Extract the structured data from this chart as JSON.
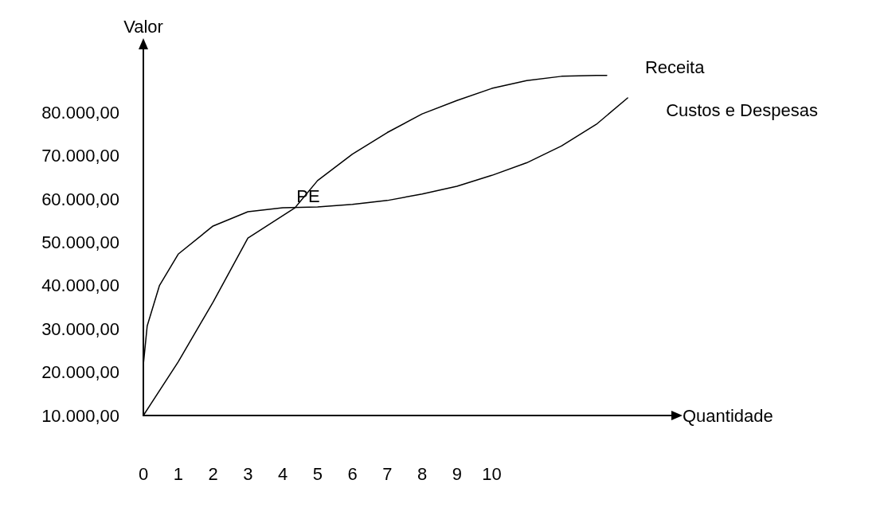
{
  "chart_data": {
    "type": "line",
    "xlabel": "Quantidade",
    "ylabel": "Valor",
    "xlim": [
      0,
      15.2
    ],
    "xticks": [
      0,
      1,
      2,
      3,
      4,
      5,
      6,
      7,
      8,
      9,
      10
    ],
    "ylim": [
      10000,
      95000
    ],
    "yticks": [
      {
        "value": 10000,
        "label": "10.000,00"
      },
      {
        "value": 20000,
        "label": "20.000,00"
      },
      {
        "value": 30000,
        "label": "30.000,00"
      },
      {
        "value": 40000,
        "label": "40.000,00"
      },
      {
        "value": 50000,
        "label": "50.000,00"
      },
      {
        "value": 60000,
        "label": "60.000,00"
      },
      {
        "value": 70000,
        "label": "70.000,00"
      },
      {
        "value": 80000,
        "label": "80.000,00"
      }
    ],
    "series": [
      {
        "name": "Receita",
        "color": "#000000",
        "x": [
          0,
          1,
          2,
          3,
          4.35,
          5,
          6,
          7,
          8,
          9,
          10,
          11,
          12,
          13,
          13.3
        ],
        "values": [
          10000,
          22400,
          36200,
          51000,
          58000,
          64300,
          70400,
          75400,
          79700,
          82800,
          85600,
          87400,
          88400,
          88600,
          88600
        ]
      },
      {
        "name": "Custos e Despesas",
        "color": "#000000",
        "x": [
          0,
          0.11,
          0.46,
          1,
          2,
          3,
          4,
          5,
          6,
          7,
          8,
          9,
          10,
          11,
          12,
          13,
          13.9
        ],
        "values": [
          21800,
          30700,
          40000,
          47300,
          53800,
          57100,
          58000,
          58200,
          58800,
          59700,
          61200,
          63000,
          65500,
          68400,
          72300,
          77300,
          83400
        ]
      }
    ],
    "annotations": [
      {
        "text": "PE",
        "x": 4.35,
        "y": 58000
      }
    ],
    "grid": false,
    "legend": false,
    "marker": "none",
    "line_style": "solid"
  }
}
